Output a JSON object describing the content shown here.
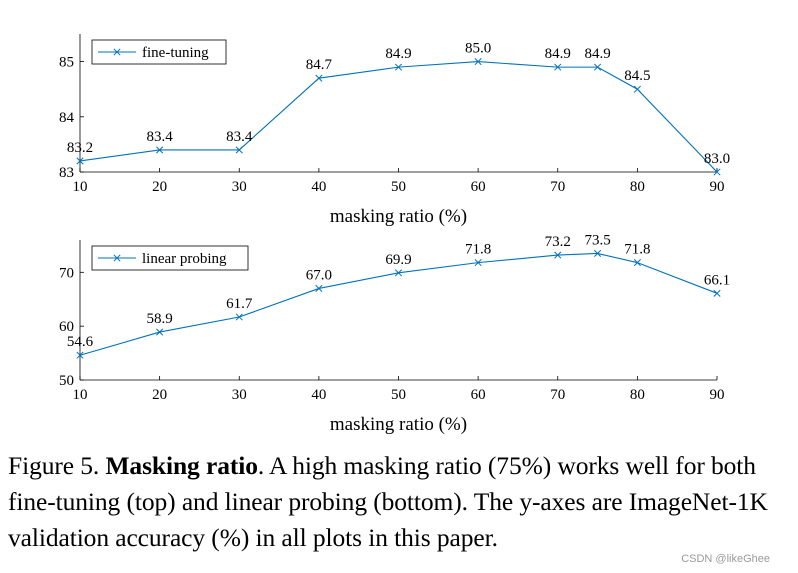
{
  "chart_data": [
    {
      "type": "line",
      "series": [
        {
          "name": "fine-tuning",
          "values": [
            83.2,
            83.4,
            83.4,
            84.7,
            84.9,
            85.0,
            84.9,
            84.9,
            84.5,
            83.0
          ]
        }
      ],
      "x": [
        10,
        20,
        30,
        40,
        50,
        60,
        70,
        75,
        80,
        90
      ],
      "data_labels": [
        "83.2",
        "83.4",
        "83.4",
        "84.7",
        "84.9",
        "85.0",
        "84.9",
        "84.9",
        "84.5",
        "83.0"
      ],
      "xticks": [
        10,
        20,
        30,
        40,
        50,
        60,
        70,
        80,
        90
      ],
      "yticks": [
        83,
        84,
        85
      ],
      "xlim": [
        10,
        90
      ],
      "ylim": [
        83,
        85.5
      ],
      "xlabel": "masking ratio (%)",
      "ylabel": "",
      "legend": "top-left",
      "color": "#0072bd"
    },
    {
      "type": "line",
      "series": [
        {
          "name": "linear probing",
          "values": [
            54.6,
            58.9,
            61.7,
            67.0,
            69.9,
            71.8,
            73.2,
            73.5,
            71.8,
            66.1
          ]
        }
      ],
      "x": [
        10,
        20,
        30,
        40,
        50,
        60,
        70,
        75,
        80,
        90
      ],
      "data_labels": [
        "54.6",
        "58.9",
        "61.7",
        "67.0",
        "69.9",
        "71.8",
        "73.2",
        "73.5",
        "71.8",
        "66.1"
      ],
      "xticks": [
        10,
        20,
        30,
        40,
        50,
        60,
        70,
        80,
        90
      ],
      "yticks": [
        50,
        60,
        70
      ],
      "xlim": [
        10,
        90
      ],
      "ylim": [
        50,
        76
      ],
      "xlabel": "masking ratio (%)",
      "ylabel": "",
      "legend": "top-left",
      "color": "#0072bd"
    }
  ],
  "caption": {
    "prefix": "Figure 5.",
    "bold": "Masking ratio",
    "text": ". A high masking ratio (75%) works well for both fine-tuning (top) and linear probing (bottom). The y-axes are ImageNet-1K validation accuracy (%) in all plots in this paper."
  },
  "watermark": "CSDN @likeGhee"
}
